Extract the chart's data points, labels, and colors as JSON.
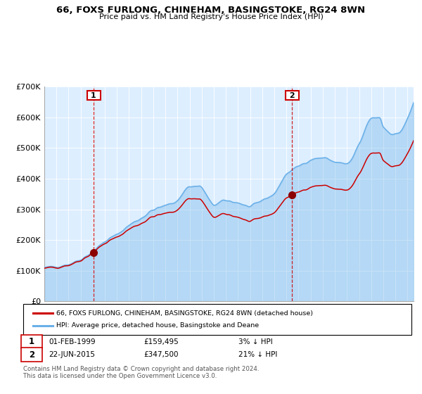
{
  "title": "66, FOXS FURLONG, CHINEHAM, BASINGSTOKE, RG24 8WN",
  "subtitle": "Price paid vs. HM Land Registry's House Price Index (HPI)",
  "legend_line1": "66, FOXS FURLONG, CHINEHAM, BASINGSTOKE, RG24 8WN (detached house)",
  "legend_line2": "HPI: Average price, detached house, Basingstoke and Deane",
  "annotation1_date": "01-FEB-1999",
  "annotation1_price": "£159,495",
  "annotation1_hpi": "3% ↓ HPI",
  "annotation2_date": "22-JUN-2015",
  "annotation2_price": "£347,500",
  "annotation2_hpi": "21% ↓ HPI",
  "footer": "Contains HM Land Registry data © Crown copyright and database right 2024.\nThis data is licensed under the Open Government Licence v3.0.",
  "sale1_year": 1999.08,
  "sale1_value": 159495,
  "sale2_year": 2015.47,
  "sale2_value": 347500,
  "hpi_color": "#6ab0e8",
  "property_color": "#cc0000",
  "marker_color": "#8b0000",
  "annotation_box_color": "#cc0000",
  "plot_bg": "#ddeeff",
  "ylim": [
    0,
    700000
  ],
  "xlim_start": 1995.0,
  "xlim_end": 2025.5
}
